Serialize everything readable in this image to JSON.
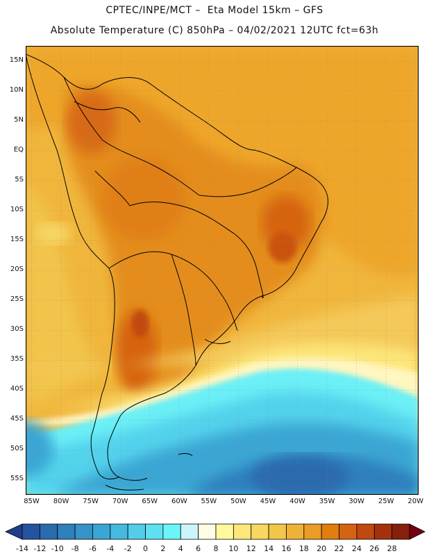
{
  "header": {
    "line1": "CPTEC/INPE/MCT –  Eta Model 15km – GFS",
    "line2": "Absolute Temperature (C) 850hPa – 04/02/2021 12UTC fct=63h"
  },
  "map": {
    "lat_labels": [
      "15N",
      "10N",
      "5N",
      "EQ",
      "5S",
      "10S",
      "15S",
      "20S",
      "25S",
      "30S",
      "35S",
      "40S",
      "45S",
      "50S",
      "55S"
    ],
    "lat_values": [
      15,
      10,
      5,
      0,
      -5,
      -10,
      -15,
      -20,
      -25,
      -30,
      -35,
      -40,
      -45,
      -50,
      -55
    ],
    "lon_labels": [
      "85W",
      "80W",
      "75W",
      "70W",
      "65W",
      "60W",
      "55W",
      "50W",
      "45W",
      "40W",
      "35W",
      "30W",
      "25W",
      "20W"
    ],
    "lon_values": [
      -85,
      -80,
      -75,
      -70,
      -65,
      -60,
      -55,
      -50,
      -45,
      -40,
      -35,
      -30,
      -25,
      -20
    ],
    "lat_range": [
      -57.5,
      17.5
    ],
    "lon_range": [
      -86,
      -19.5
    ]
  },
  "colorbar": {
    "labels": [
      "-14",
      "-12",
      "-10",
      "-8",
      "-6",
      "-4",
      "-2",
      "0",
      "2",
      "4",
      "6",
      "8",
      "10",
      "12",
      "14",
      "16",
      "18",
      "20",
      "22",
      "24",
      "26",
      "28"
    ],
    "colors": [
      "#1f3f8c",
      "#24549f",
      "#2a6aae",
      "#2f7fbd",
      "#3593c8",
      "#3aa6d3",
      "#45b9de",
      "#53cde9",
      "#5fe0f0",
      "#6cf5f8",
      "#ccf5fb",
      "#fffbe4",
      "#fff89c",
      "#fde77a",
      "#f8d660",
      "#f2c64a",
      "#efb238",
      "#ea9c26",
      "#e27d10",
      "#d66311",
      "#c1480e",
      "#a5310c",
      "#86200c",
      "#750012"
    ]
  }
}
